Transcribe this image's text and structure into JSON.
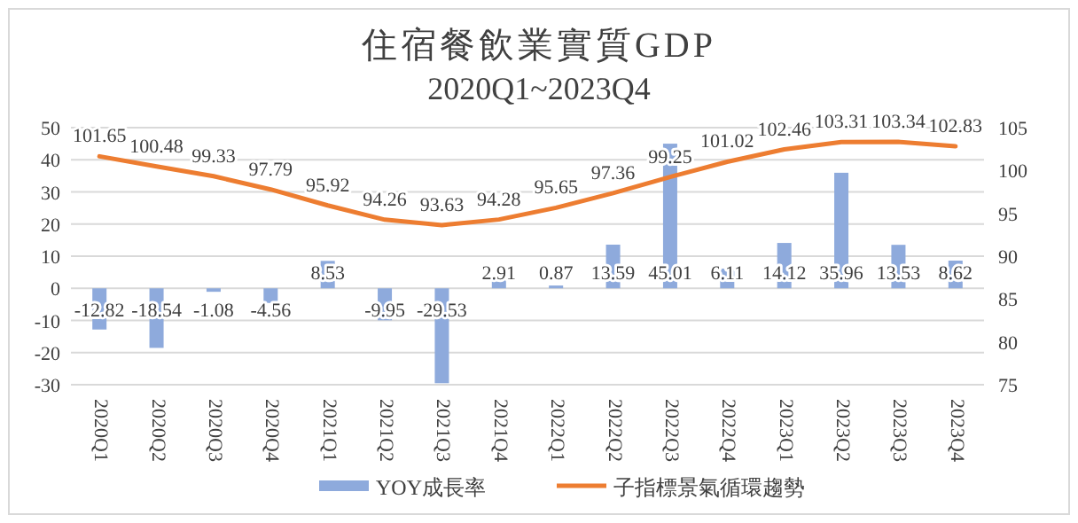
{
  "chart_data": {
    "type": "bar",
    "title": "住宿餐飲業實質GDP",
    "subtitle": "2020Q1~2023Q4",
    "categories": [
      "2020Q1",
      "2020Q2",
      "2020Q3",
      "2020Q4",
      "2021Q1",
      "2021Q2",
      "2021Q3",
      "2021Q4",
      "2022Q1",
      "2022Q2",
      "2022Q3",
      "2022Q4",
      "2023Q1",
      "2023Q2",
      "2023Q3",
      "2023Q4"
    ],
    "series": [
      {
        "name": "YOY成長率",
        "color": "#8eaadc",
        "values": [
          -12.82,
          -18.54,
          -1.08,
          -4.56,
          8.53,
          -9.95,
          -29.53,
          2.91,
          0.87,
          13.59,
          45.01,
          6.11,
          14.12,
          35.96,
          13.53,
          8.62
        ]
      },
      {
        "name": "子指標景氣循環趨勢",
        "type": "line",
        "axis": "y2",
        "color": "#ed7d31",
        "values": [
          101.65,
          100.48,
          99.33,
          97.79,
          95.92,
          94.26,
          93.63,
          94.28,
          95.65,
          97.36,
          99.25,
          101.02,
          102.46,
          103.31,
          103.34,
          102.83
        ]
      }
    ],
    "ylim": [
      -30,
      50
    ],
    "yticks": [
      -30,
      -20,
      -10,
      0,
      10,
      20,
      30,
      40,
      50
    ],
    "y2lim": [
      75,
      105
    ],
    "y2ticks": [
      75,
      80,
      85,
      90,
      95,
      100,
      105
    ],
    "grid": "y",
    "legend": "bottom",
    "data_labels": true,
    "marker": "none",
    "line_style": "solid"
  }
}
